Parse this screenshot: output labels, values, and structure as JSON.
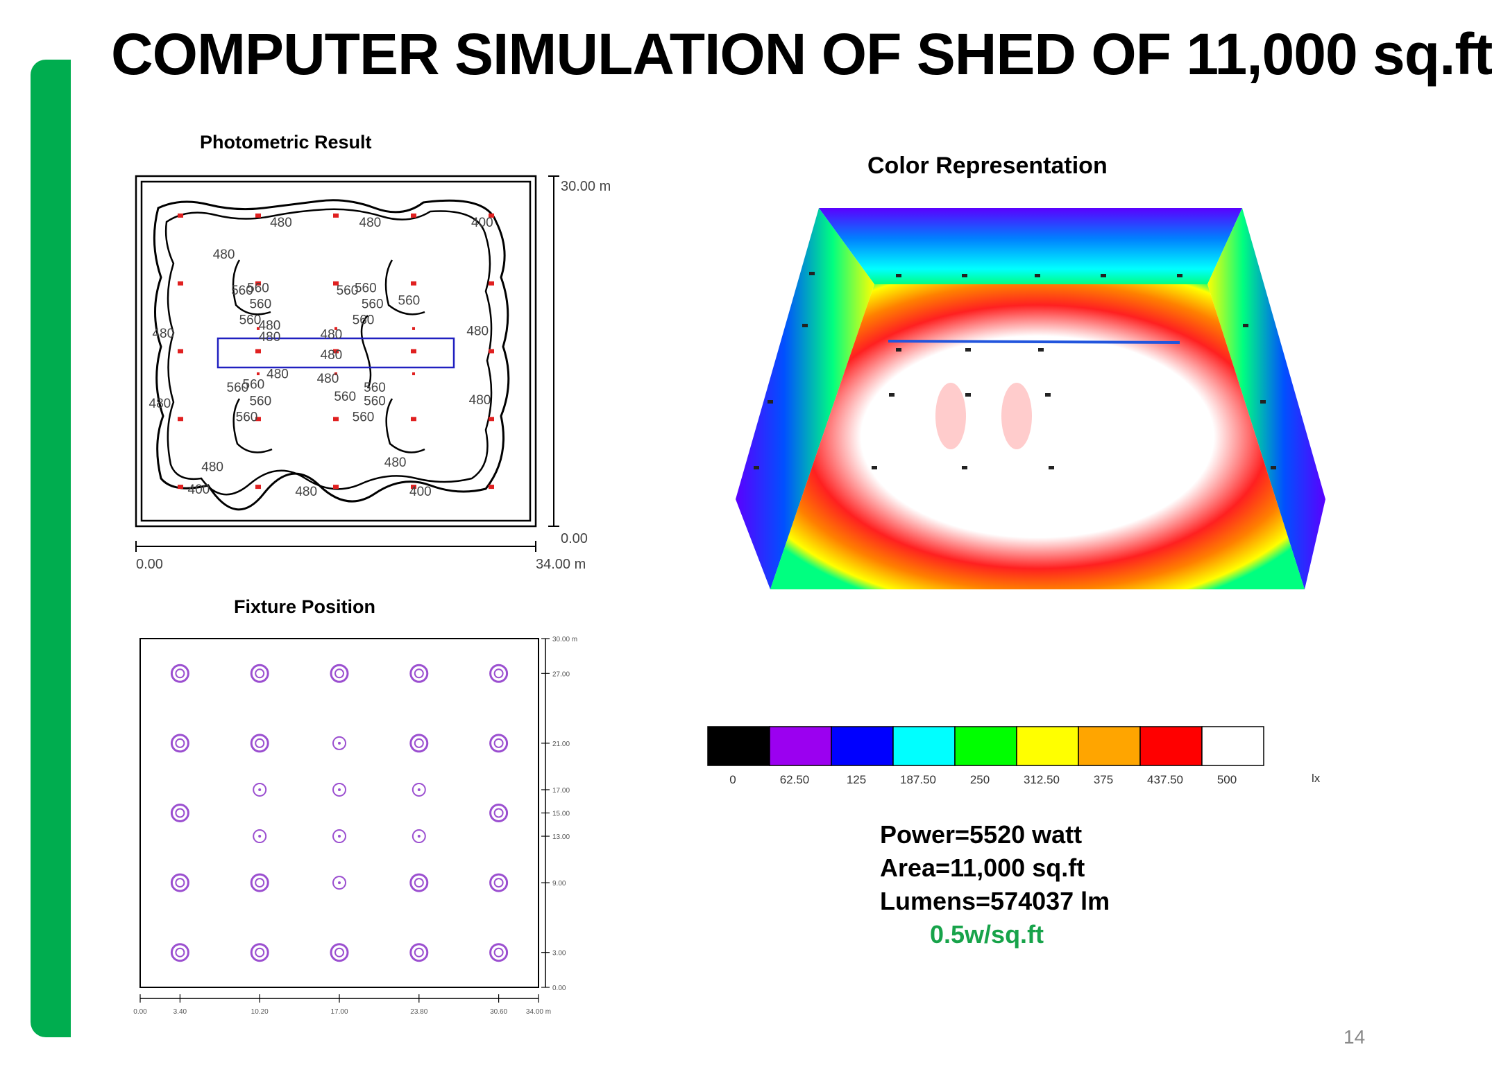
{
  "slide": {
    "title": "COMPUTER SIMULATION OF SHED OF 11,000 sq.ft",
    "page_number": "14",
    "accent_color": "#00ad4f"
  },
  "photometric": {
    "heading": "Photometric Result",
    "y_top_label": "30.00 m",
    "y_bottom_label": "0.00",
    "x_left_label": "0.00",
    "x_right_label": "34.00 m",
    "contour_labels": [
      {
        "text": "480",
        "x": 7.2,
        "y": 23.2
      },
      {
        "text": "480",
        "x": 12.2,
        "y": 26.0
      },
      {
        "text": "480",
        "x": 20.0,
        "y": 26.0
      },
      {
        "text": "400",
        "x": 29.8,
        "y": 26.0
      },
      {
        "text": "560",
        "x": 8.8,
        "y": 20.0
      },
      {
        "text": "560",
        "x": 10.2,
        "y": 20.2
      },
      {
        "text": "560",
        "x": 10.4,
        "y": 18.8
      },
      {
        "text": "560",
        "x": 9.5,
        "y": 17.4
      },
      {
        "text": "480",
        "x": 11.2,
        "y": 16.9
      },
      {
        "text": "480",
        "x": 11.2,
        "y": 15.9
      },
      {
        "text": "560",
        "x": 18.0,
        "y": 20.0
      },
      {
        "text": "560",
        "x": 19.6,
        "y": 20.2
      },
      {
        "text": "560",
        "x": 20.2,
        "y": 18.8
      },
      {
        "text": "560",
        "x": 19.4,
        "y": 17.4
      },
      {
        "text": "560",
        "x": 23.4,
        "y": 19.1
      },
      {
        "text": "480",
        "x": 29.4,
        "y": 16.4
      },
      {
        "text": "480",
        "x": 1.9,
        "y": 16.2
      },
      {
        "text": "480",
        "x": 16.6,
        "y": 16.1
      },
      {
        "text": "480",
        "x": 16.6,
        "y": 14.3
      },
      {
        "text": "480",
        "x": 11.9,
        "y": 12.6
      },
      {
        "text": "480",
        "x": 16.3,
        "y": 12.2
      },
      {
        "text": "560",
        "x": 8.4,
        "y": 11.4
      },
      {
        "text": "560",
        "x": 9.8,
        "y": 11.7
      },
      {
        "text": "560",
        "x": 10.4,
        "y": 10.2
      },
      {
        "text": "560",
        "x": 9.2,
        "y": 8.8
      },
      {
        "text": "560",
        "x": 17.8,
        "y": 10.6
      },
      {
        "text": "560",
        "x": 20.4,
        "y": 11.4
      },
      {
        "text": "560",
        "x": 20.4,
        "y": 10.2
      },
      {
        "text": "560",
        "x": 19.4,
        "y": 8.8
      },
      {
        "text": "480",
        "x": 1.6,
        "y": 10.0
      },
      {
        "text": "480",
        "x": 29.6,
        "y": 10.3
      },
      {
        "text": "480",
        "x": 6.2,
        "y": 4.4
      },
      {
        "text": "480",
        "x": 22.2,
        "y": 4.8
      },
      {
        "text": "400",
        "x": 5.0,
        "y": 2.4
      },
      {
        "text": "480",
        "x": 14.4,
        "y": 2.2
      },
      {
        "text": "400",
        "x": 24.4,
        "y": 2.2
      }
    ]
  },
  "fixtures": {
    "heading": "Fixture Position",
    "y_ticks": [
      "30.00 m",
      "27.00",
      "21.00",
      "17.00",
      "15.00",
      "13.00",
      "9.00",
      "3.00",
      "0.00"
    ],
    "x_ticks": [
      "0.00",
      "3.40",
      "10.20",
      "17.00",
      "23.80",
      "30.60",
      "34.00 m"
    ]
  },
  "color_representation": {
    "heading": "Color Representation"
  },
  "scale": {
    "unit": "lx",
    "colors": [
      "#000000",
      "#9b00f0",
      "#0000ff",
      "#00ffff",
      "#00ff00",
      "#ffff00",
      "#ffa500",
      "#ff0000",
      "#ffffff"
    ],
    "labels": [
      "0",
      "62.50",
      "125",
      "187.50",
      "250",
      "312.50",
      "375",
      "437.50",
      "500"
    ]
  },
  "stats": {
    "power": "Power=5520 watt",
    "area": "Area=11,000 sq.ft",
    "lumens": "Lumens=574037 lm",
    "density": "0.5w/sq.ft"
  }
}
